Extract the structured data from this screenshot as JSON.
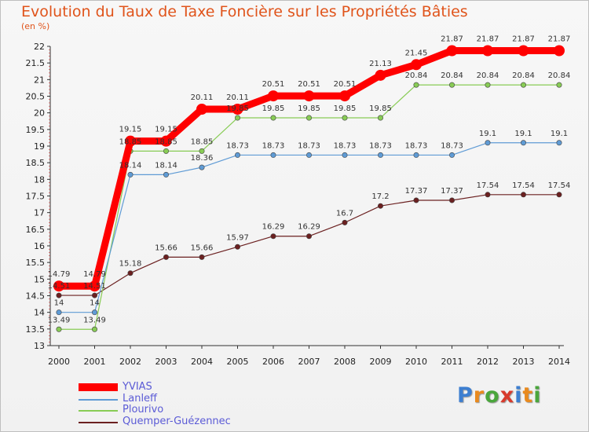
{
  "title": "Evolution du Taux de Taxe Foncière sur les Propriétés Bâties",
  "subtitle": "(en %)",
  "logo": {
    "text": "Proxiti",
    "letter_colors": [
      "#3d7fd1",
      "#e98a1e",
      "#4aa63c",
      "#d83a2c",
      "#3d7fd1",
      "#e98a1e",
      "#4aa63c"
    ]
  },
  "chart_data": {
    "type": "line",
    "x": [
      "2000",
      "2001",
      "2002",
      "2003",
      "2004",
      "2005",
      "2006",
      "2007",
      "2008",
      "2009",
      "2010",
      "2011",
      "2012",
      "2013",
      "2014"
    ],
    "ylim": [
      13,
      22
    ],
    "yticks": [
      "13",
      "13.5",
      "14",
      "14.5",
      "15",
      "15.5",
      "16",
      "16.5",
      "17",
      "17.5",
      "18",
      "18.5",
      "19",
      "19.5",
      "20",
      "20.5",
      "21",
      "21.5",
      "22"
    ],
    "grid": false,
    "legend_position": "bottom-left",
    "series": [
      {
        "name": "Quemper-Guézennec",
        "color": "#6b2020",
        "values": [
          14.51,
          14.51,
          15.18,
          15.66,
          15.66,
          15.97,
          16.29,
          16.29,
          16.7,
          17.2,
          17.37,
          17.37,
          17.54,
          17.54,
          17.54
        ],
        "labels": [
          "14.51",
          "14.51",
          "15.18",
          "15.66",
          "15.66",
          "15.97",
          "16.29",
          "16.29",
          "16.7",
          "17.2",
          "17.37",
          "17.37",
          "17.54",
          "17.54",
          "17.54"
        ]
      },
      {
        "name": "Plourivo",
        "color": "#88cc55",
        "values": [
          13.49,
          13.49,
          18.85,
          18.85,
          18.85,
          19.85,
          19.85,
          19.85,
          19.85,
          19.85,
          20.84,
          20.84,
          20.84,
          20.84,
          20.84
        ],
        "labels": [
          "13.49",
          "13.49",
          "18.85",
          "18.85",
          "18.85",
          "19.85",
          "19.85",
          "19.85",
          "19.85",
          "19.85",
          "20.84",
          "20.84",
          "20.84",
          "20.84",
          "20.84"
        ]
      },
      {
        "name": "Lanleff",
        "color": "#5f9bd5",
        "values": [
          14,
          14,
          18.14,
          18.14,
          18.36,
          18.73,
          18.73,
          18.73,
          18.73,
          18.73,
          18.73,
          18.73,
          19.1,
          19.1,
          19.1
        ],
        "labels": [
          "14",
          "14",
          "18.14",
          "18.14",
          "18.36",
          "18.73",
          "18.73",
          "18.73",
          "18.73",
          "18.73",
          "18.73",
          "18.73",
          "19.1",
          "19.1",
          "19.1"
        ]
      },
      {
        "name": "YVIAS",
        "color": "#ff0000",
        "values": [
          14.79,
          14.79,
          19.15,
          19.15,
          20.11,
          20.11,
          20.51,
          20.51,
          20.51,
          21.13,
          21.45,
          21.87,
          21.87,
          21.87,
          21.87
        ],
        "labels": [
          "14.79",
          "14.79",
          "19.15",
          "19.15",
          "20.11",
          "20.11",
          "20.51",
          "20.51",
          "20.51",
          "21.13",
          "21.45",
          "21.87",
          "21.87",
          "21.87",
          "21.87"
        ]
      }
    ],
    "legend": [
      {
        "name": "YVIAS",
        "color": "#ff0000"
      },
      {
        "name": "Lanleff",
        "color": "#5f9bd5"
      },
      {
        "name": "Plourivo",
        "color": "#88cc55"
      },
      {
        "name": "Quemper-Guézennec",
        "color": "#6b2020"
      }
    ]
  }
}
